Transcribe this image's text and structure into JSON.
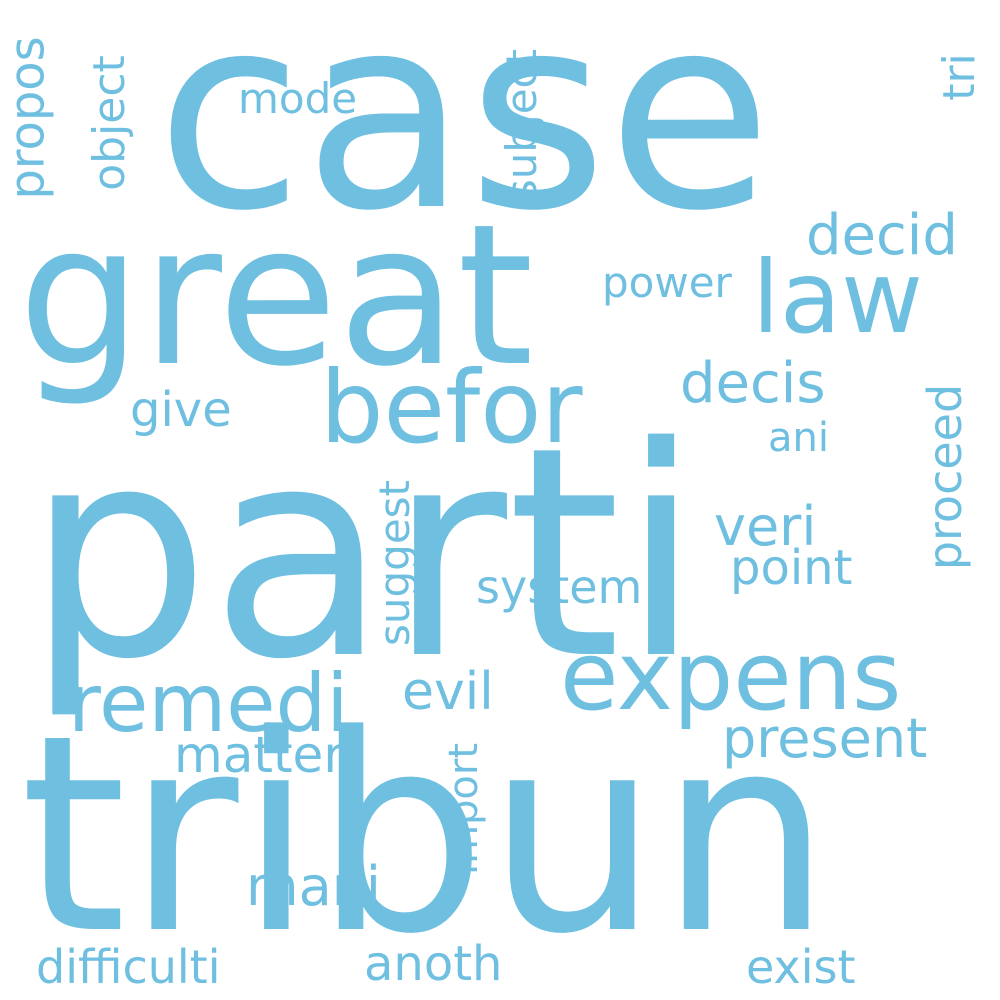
{
  "cloud": {
    "background": "#ffffff",
    "word_color": "#6fbfe0",
    "words": [
      {
        "text": "parti",
        "orientation": "horizontal"
      },
      {
        "text": "tribun",
        "orientation": "horizontal"
      },
      {
        "text": "case",
        "orientation": "horizontal"
      },
      {
        "text": "great",
        "orientation": "horizontal"
      },
      {
        "text": "expens",
        "orientation": "horizontal"
      },
      {
        "text": "befor",
        "orientation": "horizontal"
      },
      {
        "text": "law",
        "orientation": "horizontal"
      },
      {
        "text": "remedi",
        "orientation": "horizontal"
      },
      {
        "text": "present",
        "orientation": "horizontal"
      },
      {
        "text": "decid",
        "orientation": "horizontal"
      },
      {
        "text": "decis",
        "orientation": "horizontal"
      },
      {
        "text": "veri",
        "orientation": "horizontal"
      },
      {
        "text": "point",
        "orientation": "horizontal"
      },
      {
        "text": "system",
        "orientation": "horizontal"
      },
      {
        "text": "evil",
        "orientation": "horizontal"
      },
      {
        "text": "matter",
        "orientation": "horizontal"
      },
      {
        "text": "mani",
        "orientation": "horizontal"
      },
      {
        "text": "anoth",
        "orientation": "horizontal"
      },
      {
        "text": "exist",
        "orientation": "horizontal"
      },
      {
        "text": "difficulti",
        "orientation": "horizontal"
      },
      {
        "text": "give",
        "orientation": "horizontal"
      },
      {
        "text": "power",
        "orientation": "horizontal"
      },
      {
        "text": "mode",
        "orientation": "horizontal"
      },
      {
        "text": "ani",
        "orientation": "horizontal"
      },
      {
        "text": "propos",
        "orientation": "vertical"
      },
      {
        "text": "object",
        "orientation": "vertical"
      },
      {
        "text": "subject",
        "orientation": "vertical"
      },
      {
        "text": "tri",
        "orientation": "vertical"
      },
      {
        "text": "proceed",
        "orientation": "vertical"
      },
      {
        "text": "suggest",
        "orientation": "vertical"
      },
      {
        "text": "import",
        "orientation": "vertical"
      }
    ]
  }
}
